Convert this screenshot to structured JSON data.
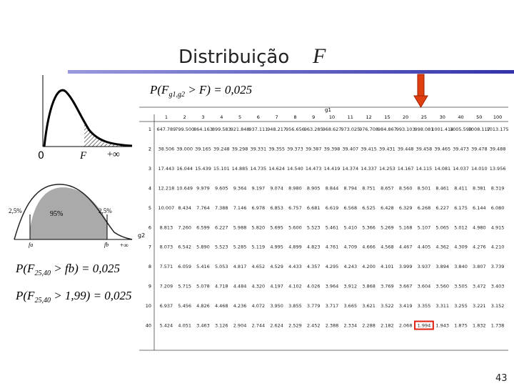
{
  "slide": {
    "title": "Distribuição",
    "title_var": "F",
    "page_number": "43",
    "plot1": {
      "zero": "0",
      "f": "F",
      "inf": "+∞"
    },
    "plot2": {
      "left_tail": "2,5%",
      "center": "95%",
      "right_tail": "2,5%",
      "fa": "fa",
      "fb": "fb",
      "inf": "+∞"
    },
    "formula1": {
      "lhs": "P(F",
      "sub": "g1,g2",
      "rhs": " > F) = 0,025"
    },
    "formula2": {
      "lhs": "P(F",
      "sub": "25,40",
      "rhs": " > fb) = 0,025"
    },
    "formula3": {
      "lhs": "P(F",
      "sub": "25,40",
      "rhs": " > 1,99) = 0,025"
    },
    "table": {
      "col_header": "g1",
      "row_header": "g2",
      "columns": [
        "1",
        "2",
        "3",
        "4",
        "5",
        "6",
        "7",
        "8",
        "9",
        "10",
        "11",
        "12",
        "15",
        "20",
        "25",
        "30",
        "40",
        "50",
        "100"
      ],
      "rows": [
        {
          "label": "1",
          "cells": [
            "647.789",
            "799.500",
            "864.163",
            "899.583",
            "921.848",
            "937.111",
            "948.217",
            "956.656",
            "963.285",
            "968.627",
            "973.025",
            "976.708",
            "984.867",
            "993.103",
            "998.081",
            "1001.414",
            "1005.598",
            "1008.117",
            "1013.175"
          ]
        },
        {
          "label": "2",
          "cells": [
            "38.506",
            "39.000",
            "39.165",
            "39.248",
            "39.298",
            "39.331",
            "39.355",
            "39.373",
            "39.387",
            "39.398",
            "39.407",
            "39.415",
            "39.431",
            "39.448",
            "39.458",
            "39.465",
            "39.473",
            "39.478",
            "39.488"
          ]
        },
        {
          "label": "3",
          "cells": [
            "17.443",
            "16.044",
            "15.439",
            "15.101",
            "14.885",
            "14.735",
            "14.624",
            "14.540",
            "14.473",
            "14.419",
            "14.374",
            "14.337",
            "14.253",
            "14.167",
            "14.115",
            "14.081",
            "14.037",
            "14.010",
            "13.956"
          ]
        },
        {
          "label": "4",
          "cells": [
            "12.218",
            "10.649",
            "9.979",
            "9.605",
            "9.364",
            "9.197",
            "9.074",
            "8.980",
            "8.905",
            "8.844",
            "8.794",
            "8.751",
            "8.657",
            "8.560",
            "8.501",
            "8.461",
            "8.411",
            "8.381",
            "8.319"
          ]
        },
        {
          "label": "5",
          "cells": [
            "10.007",
            "8.434",
            "7.764",
            "7.388",
            "7.146",
            "6.978",
            "6.853",
            "6.757",
            "6.681",
            "6.619",
            "6.568",
            "6.525",
            "6.428",
            "6.329",
            "6.268",
            "6.227",
            "6.175",
            "6.144",
            "6.080"
          ]
        },
        {
          "label": "6",
          "cells": [
            "8.813",
            "7.260",
            "6.599",
            "6.227",
            "5.988",
            "5.820",
            "5.695",
            "5.600",
            "5.523",
            "5.461",
            "5.410",
            "5.366",
            "5.269",
            "5.168",
            "5.107",
            "5.065",
            "5.012",
            "4.980",
            "4.915"
          ]
        },
        {
          "label": "7",
          "cells": [
            "8.073",
            "6.542",
            "5.890",
            "5.523",
            "5.285",
            "5.119",
            "4.995",
            "4.899",
            "4.823",
            "4.761",
            "4.709",
            "4.666",
            "4.568",
            "4.467",
            "4.405",
            "4.362",
            "4.309",
            "4.276",
            "4.210"
          ]
        },
        {
          "label": "8",
          "cells": [
            "7.571",
            "6.059",
            "5.416",
            "5.053",
            "4.817",
            "4.652",
            "4.529",
            "4.433",
            "4.357",
            "4.295",
            "4.243",
            "4.200",
            "4.101",
            "3.999",
            "3.937",
            "3.894",
            "3.840",
            "3.807",
            "3.739"
          ]
        },
        {
          "label": "9",
          "cells": [
            "7.209",
            "5.715",
            "5.078",
            "4.718",
            "4.484",
            "4.320",
            "4.197",
            "4.102",
            "4.026",
            "3.964",
            "3.912",
            "3.868",
            "3.769",
            "3.667",
            "3.604",
            "3.560",
            "3.505",
            "3.472",
            "3.403"
          ]
        },
        {
          "label": "10",
          "cells": [
            "6.937",
            "5.456",
            "4.826",
            "4.468",
            "4.236",
            "4.072",
            "3.950",
            "3.855",
            "3.779",
            "3.717",
            "3.665",
            "3.621",
            "3.522",
            "3.419",
            "3.355",
            "3.311",
            "3.255",
            "3.221",
            "3.152"
          ]
        },
        {
          "label": "40",
          "cells": [
            "5.424",
            "4.051",
            "3.463",
            "3.126",
            "2.904",
            "2.744",
            "2.624",
            "2.529",
            "2.452",
            "2.388",
            "2.334",
            "2.288",
            "2.182",
            "2.068",
            "1.994",
            "1.943",
            "1.875",
            "1.832",
            "1.738"
          ]
        }
      ]
    }
  }
}
